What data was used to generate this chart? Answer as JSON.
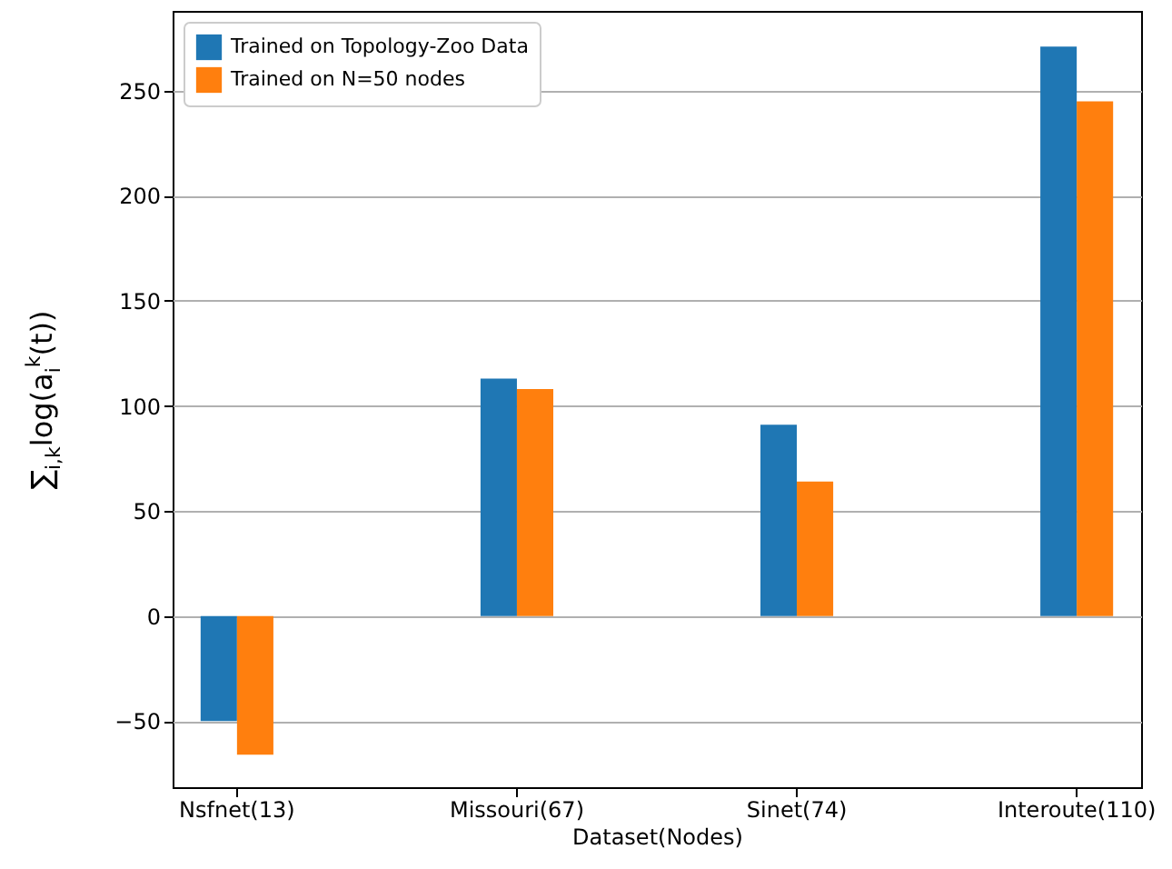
{
  "chart_data": {
    "type": "bar",
    "xlabel": "Dataset(Nodes)",
    "ylabel": "∑$_{i,k}$log(a$_{i}$$^{k}$(t))",
    "categories": [
      "Nsfnet(13)",
      "Missouri(67)",
      "Sinet(74)",
      "Interoute(110)"
    ],
    "series": [
      {
        "name": "Trained on Topology-Zoo Data",
        "color": "#1f77b4",
        "values": [
          -50,
          113,
          91,
          271
        ]
      },
      {
        "name": "Trained on N=50 nodes",
        "color": "#ff7f0e",
        "values": [
          -66,
          108,
          64,
          245
        ]
      }
    ],
    "ylim": [
      -81.5,
      288
    ],
    "yticks": [
      -50,
      0,
      50,
      100,
      150,
      200,
      250
    ],
    "grid": "y",
    "legend": "top left"
  }
}
